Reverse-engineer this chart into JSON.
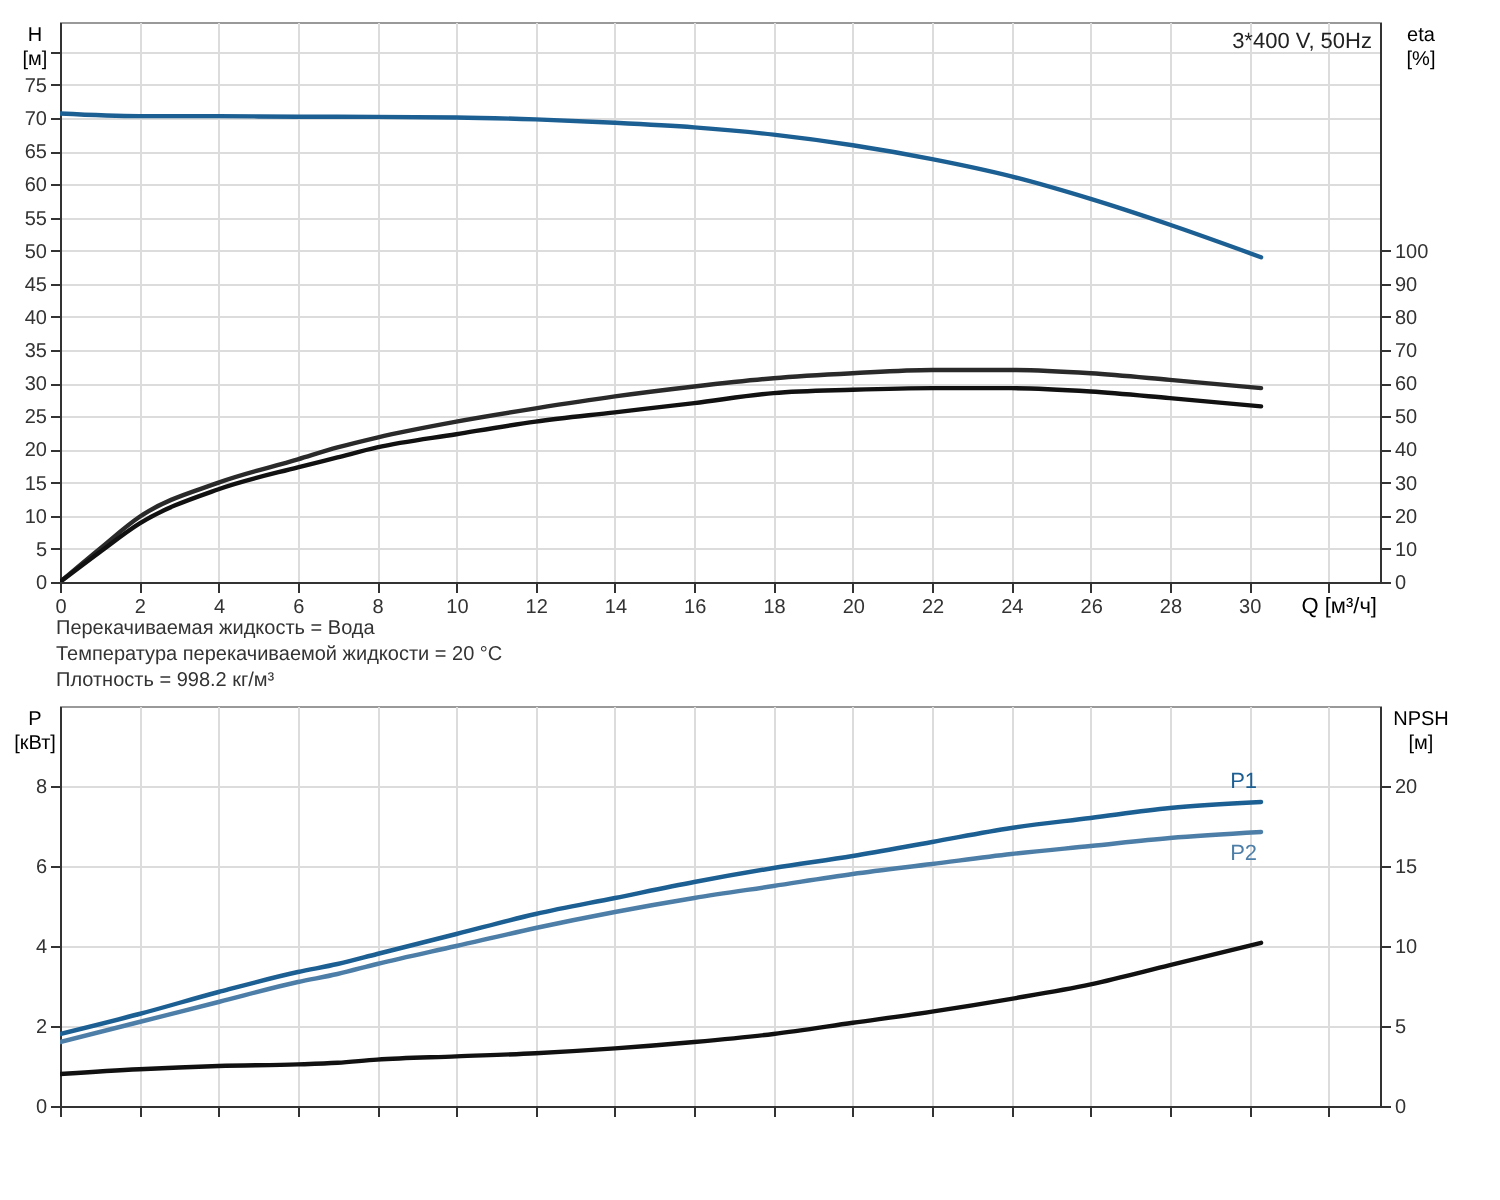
{
  "chart_data": [
    {
      "type": "line",
      "xlabel": "Q [м³/ч]",
      "ylabel": "H [м]",
      "y2label": "eta [%]",
      "annotations": [
        "3*400 V, 50Hz",
        "Перекачиваемая жидкость = Вода",
        "Температура перекачиваемой жидкости = 20 °C",
        "Плотность = 998.2 кг/м³"
      ],
      "xlim": [
        0,
        33.3
      ],
      "xticks": [
        0,
        2,
        4,
        6,
        8,
        10,
        12,
        14,
        16,
        18,
        20,
        22,
        24,
        26,
        28,
        30,
        {
          "value": 32,
          "label": null
        }
      ],
      "ylim": [
        0,
        84.5
      ],
      "yticks": [
        0,
        5,
        10,
        15,
        20,
        25,
        30,
        35,
        40,
        45,
        50,
        55,
        60,
        65,
        70,
        75,
        {
          "value": 80,
          "label": null
        }
      ],
      "y2lim": [
        0,
        169
      ],
      "y2ticks": [
        0,
        10,
        20,
        30,
        40,
        50,
        60,
        70,
        80,
        90,
        100
      ],
      "grid": true,
      "series": [
        {
          "color": "#1c5f93",
          "x": [
            0,
            2,
            4,
            6,
            7,
            10,
            12,
            14,
            16,
            18,
            20,
            22,
            24,
            26,
            28,
            30.3
          ],
          "values": [
            70.7,
            70.3,
            70.3,
            70.2,
            70.2,
            70.1,
            69.8,
            69.3,
            68.6,
            67.5,
            65.9,
            63.8,
            61.2,
            57.8,
            53.9,
            49.0
          ]
        },
        {
          "axis": "y2",
          "color": "#2a2a2a",
          "x": [
            0,
            1,
            2,
            4,
            6,
            7,
            8,
            10,
            12,
            14,
            16,
            18,
            20,
            22,
            24,
            26,
            28,
            30.3
          ],
          "values": [
            0,
            10,
            19.6,
            30,
            37,
            40.6,
            43.6,
            48.4,
            52.4,
            56,
            59,
            61.5,
            63,
            64,
            64,
            63,
            61,
            58.5
          ]
        },
        {
          "axis": "y2",
          "color": "#111111",
          "x": [
            0,
            1,
            2,
            4,
            6,
            7,
            8,
            10,
            12,
            14,
            16,
            18,
            20,
            22,
            24,
            26,
            28,
            30.3
          ],
          "values": [
            0,
            9,
            17.6,
            28,
            34.6,
            37.6,
            40.6,
            44.6,
            48.4,
            51.2,
            54,
            57,
            58,
            58.5,
            58.5,
            57.5,
            55.5,
            53
          ]
        }
      ]
    },
    {
      "type": "line",
      "ylabel": "P [кВт]",
      "y2label": "NPSH [м]",
      "tick_labels": "y",
      "xlim": [
        0,
        33.3
      ],
      "xticks": [
        0,
        2,
        4,
        6,
        8,
        10,
        12,
        14,
        16,
        18,
        20,
        22,
        24,
        26,
        28,
        30,
        32
      ],
      "ylim": [
        0,
        10
      ],
      "yticks": [
        0,
        2,
        4,
        6,
        8
      ],
      "y2lim": [
        0,
        25
      ],
      "y2ticks": [
        0,
        5,
        10,
        15,
        20
      ],
      "grid": true,
      "series": [
        {
          "name": "P1",
          "color": "#1c5f93",
          "x": [
            0,
            2,
            4,
            6,
            7,
            8,
            10,
            12,
            14,
            16,
            18,
            20,
            22,
            24,
            26,
            28,
            30.3
          ],
          "values": [
            1.8,
            2.3,
            2.85,
            3.35,
            3.55,
            3.8,
            4.3,
            4.8,
            5.2,
            5.6,
            5.95,
            6.25,
            6.6,
            6.95,
            7.2,
            7.45,
            7.6
          ]
        },
        {
          "name": "P2",
          "color": "#4d7ea8",
          "x": [
            0,
            2,
            4,
            6,
            7,
            8,
            10,
            12,
            14,
            16,
            18,
            20,
            22,
            24,
            26,
            28,
            30.3
          ],
          "values": [
            1.6,
            2.1,
            2.6,
            3.1,
            3.3,
            3.55,
            4.0,
            4.45,
            4.85,
            5.2,
            5.5,
            5.8,
            6.05,
            6.3,
            6.5,
            6.7,
            6.85
          ]
        },
        {
          "axis": "y2",
          "color": "#111111",
          "x": [
            0,
            2,
            4,
            6,
            7,
            8,
            10,
            12,
            14,
            16,
            18,
            20,
            22,
            24,
            26,
            28,
            30.3
          ],
          "values": [
            2.0,
            2.3,
            2.5,
            2.6,
            2.7,
            2.9,
            3.1,
            3.3,
            3.6,
            4.0,
            4.5,
            5.2,
            5.9,
            6.7,
            7.6,
            8.8,
            10.2
          ]
        }
      ]
    }
  ]
}
